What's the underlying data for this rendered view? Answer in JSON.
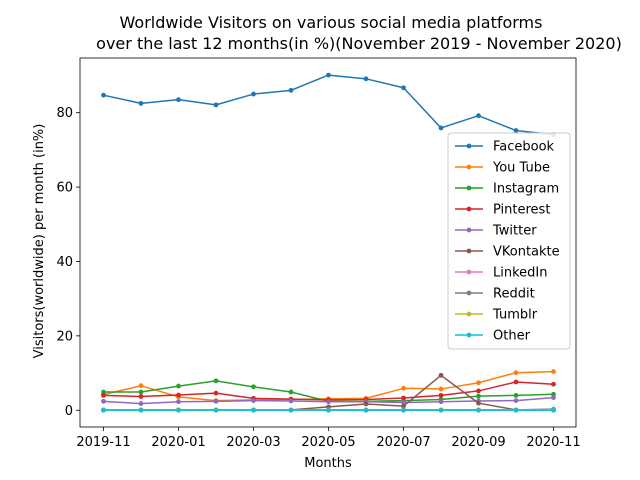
{
  "chart_data": {
    "type": "line",
    "title_line1": "Worldwide Visitors on various social media platforms",
    "title_line2": "over the last 12 months(in %)(November 2019 - November 2020)",
    "xlabel": "Months",
    "ylabel": "Visitors(worldwide) per month (in%)",
    "x": [
      "2019-11",
      "2019-12",
      "2020-01",
      "2020-02",
      "2020-03",
      "2020-04",
      "2020-05",
      "2020-06",
      "2020-07",
      "2020-08",
      "2020-09",
      "2020-10",
      "2020-11"
    ],
    "x_ticks": [
      {
        "label": "2019-11",
        "value": "2019-11"
      },
      {
        "label": "2020-01",
        "value": "2020-01"
      },
      {
        "label": "2020-03",
        "value": "2020-03"
      },
      {
        "label": "2020-05",
        "value": "2020-05"
      },
      {
        "label": "2020-07",
        "value": "2020-07"
      },
      {
        "label": "2020-09",
        "value": "2020-09"
      },
      {
        "label": "2020-11",
        "value": "2020-11"
      }
    ],
    "y_ticks": [
      0,
      20,
      40,
      60,
      80
    ],
    "ylim": [
      -4.5,
      94.7
    ],
    "grid": false,
    "legend_position": "center-right",
    "series": [
      {
        "name": "Facebook",
        "color": "#1f77b4",
        "values": [
          84.7,
          82.5,
          83.5,
          82.1,
          85.0,
          86.0,
          90.1,
          89.1,
          86.7,
          75.9,
          79.2,
          75.2,
          74.1
        ]
      },
      {
        "name": "You Tube",
        "color": "#ff7f0e",
        "values": [
          4.2,
          6.6,
          3.6,
          2.6,
          2.8,
          2.9,
          3.1,
          3.2,
          5.9,
          5.7,
          7.4,
          10.1,
          10.4
        ]
      },
      {
        "name": "Instagram",
        "color": "#2ca02c",
        "values": [
          4.9,
          4.9,
          6.5,
          7.9,
          6.3,
          4.9,
          2.4,
          2.4,
          2.6,
          2.9,
          3.8,
          4.0,
          4.3
        ]
      },
      {
        "name": "Pinterest",
        "color": "#d62728",
        "values": [
          4.0,
          3.7,
          4.1,
          4.6,
          3.2,
          3.0,
          2.8,
          2.9,
          3.3,
          4.0,
          5.2,
          7.6,
          7.0
        ]
      },
      {
        "name": "Twitter",
        "color": "#9467bd",
        "values": [
          2.4,
          1.8,
          2.3,
          2.4,
          2.6,
          2.5,
          2.3,
          2.3,
          2.1,
          2.3,
          2.5,
          2.6,
          3.4
        ]
      },
      {
        "name": "VKontakte",
        "color": "#8c564b",
        "values": [
          0.1,
          0.1,
          0.1,
          0.1,
          0.1,
          0.1,
          0.9,
          1.7,
          1.1,
          9.4,
          1.9,
          0.1,
          0.1
        ]
      },
      {
        "name": "LinkedIn",
        "color": "#e377c2",
        "values": [
          0.1,
          0.1,
          0.1,
          0.1,
          0.1,
          0.1,
          0.1,
          0.1,
          0.1,
          0.1,
          0.1,
          0.1,
          0.2
        ]
      },
      {
        "name": "Reddit",
        "color": "#7f7f7f",
        "values": [
          0.1,
          0.1,
          0.1,
          0.1,
          0.1,
          0.1,
          0.1,
          0.1,
          0.1,
          0.1,
          0.1,
          0.1,
          0.3
        ]
      },
      {
        "name": "Tumblr",
        "color": "#bcbd22",
        "values": [
          0.1,
          0.1,
          0.1,
          0.1,
          0.1,
          0.1,
          0.1,
          0.1,
          0.1,
          0.1,
          0.1,
          0.1,
          0.1
        ]
      },
      {
        "name": "Other",
        "color": "#17becf",
        "values": [
          0.0,
          0.0,
          0.0,
          0.0,
          0.0,
          0.0,
          0.0,
          0.0,
          0.0,
          0.0,
          0.0,
          0.0,
          0.0
        ]
      }
    ]
  }
}
